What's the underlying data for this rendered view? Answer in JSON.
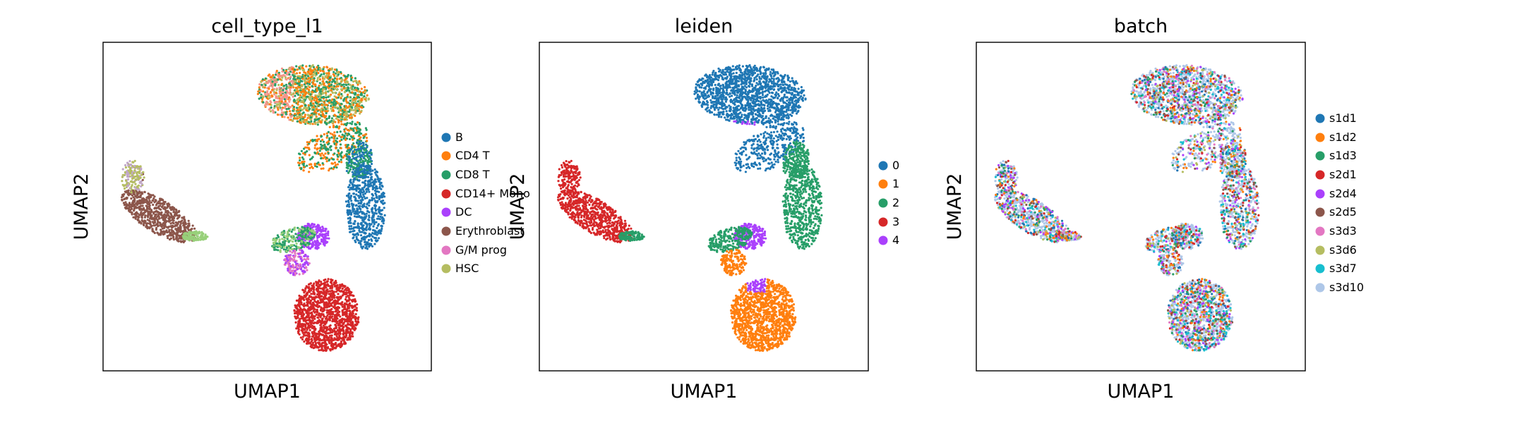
{
  "chart_data": [
    {
      "type": "scatter",
      "title": "cell_type_l1",
      "xlabel": "UMAP1",
      "ylabel": "UMAP2",
      "xticks": false,
      "yticks": false,
      "legend_position": "right",
      "legend": [
        {
          "label": "B",
          "color": "#1f77b4"
        },
        {
          "label": "CD4 T",
          "color": "#ff7f0e"
        },
        {
          "label": "CD8 T",
          "color": "#279e68"
        },
        {
          "label": "CD14+ Mono",
          "color": "#d62728"
        },
        {
          "label": "DC",
          "color": "#aa40fc"
        },
        {
          "label": "Erythroblast",
          "color": "#8c564b"
        },
        {
          "label": "G/M prog",
          "color": "#e377c2"
        },
        {
          "label": "HSC",
          "color": "#b5bd61"
        }
      ]
    },
    {
      "type": "scatter",
      "title": "leiden",
      "xlabel": "UMAP1",
      "ylabel": "UMAP2",
      "xticks": false,
      "yticks": false,
      "legend_position": "right",
      "legend": [
        {
          "label": "0",
          "color": "#1f77b4"
        },
        {
          "label": "1",
          "color": "#ff7f0e"
        },
        {
          "label": "2",
          "color": "#279e68"
        },
        {
          "label": "3",
          "color": "#d62728"
        },
        {
          "label": "4",
          "color": "#aa40fc"
        }
      ]
    },
    {
      "type": "scatter",
      "title": "batch",
      "xlabel": "UMAP1",
      "ylabel": "UMAP2",
      "xticks": false,
      "yticks": false,
      "legend_position": "right",
      "legend": [
        {
          "label": "s1d1",
          "color": "#1f77b4"
        },
        {
          "label": "s1d2",
          "color": "#ff7f0e"
        },
        {
          "label": "s1d3",
          "color": "#279e68"
        },
        {
          "label": "s2d1",
          "color": "#d62728"
        },
        {
          "label": "s2d4",
          "color": "#aa40fc"
        },
        {
          "label": "s2d5",
          "color": "#8c564b"
        },
        {
          "label": "s3d3",
          "color": "#e377c2"
        },
        {
          "label": "s3d6",
          "color": "#b5bd61"
        },
        {
          "label": "s3d7",
          "color": "#17becf"
        },
        {
          "label": "s3d10",
          "color": "#aec7e8"
        }
      ]
    }
  ]
}
